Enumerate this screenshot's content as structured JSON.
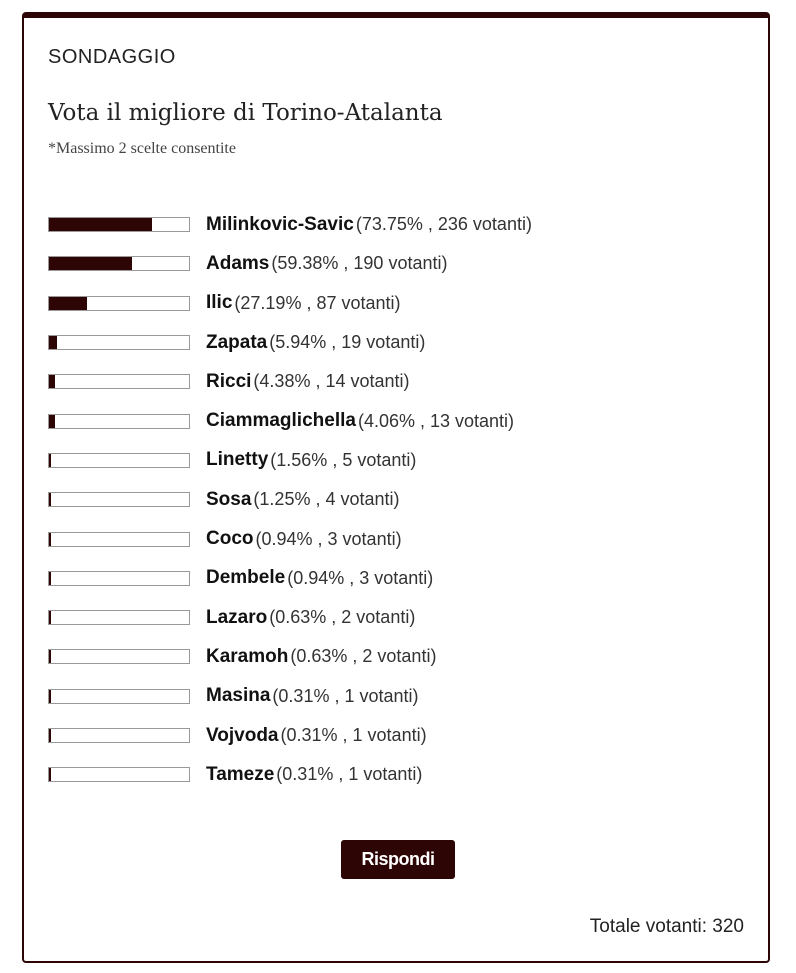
{
  "poll": {
    "label": "SONDAGGIO",
    "title": "Vota il migliore di Torino-Atalanta",
    "subtitle": "*Massimo 2 scelte consentite",
    "options": [
      {
        "name": "Milinkovic-Savic",
        "stat": "(73.75% , 236 votanti)",
        "percent": 73.75
      },
      {
        "name": "Adams",
        "stat": "(59.38% , 190 votanti)",
        "percent": 59.38
      },
      {
        "name": "Ilic",
        "stat": "(27.19% , 87 votanti)",
        "percent": 27.19
      },
      {
        "name": "Zapata",
        "stat": "(5.94% , 19 votanti)",
        "percent": 5.94
      },
      {
        "name": "Ricci",
        "stat": "(4.38% , 14 votanti)",
        "percent": 4.38
      },
      {
        "name": "Ciammaglichella",
        "stat": "(4.06% , 13 votanti)",
        "percent": 4.06
      },
      {
        "name": "Linetty",
        "stat": "(1.56% , 5 votanti)",
        "percent": 1.56
      },
      {
        "name": "Sosa",
        "stat": "(1.25% , 4 votanti)",
        "percent": 1.25
      },
      {
        "name": "Coco",
        "stat": "(0.94% , 3 votanti)",
        "percent": 0.94
      },
      {
        "name": "Dembele",
        "stat": "(0.94% , 3 votanti)",
        "percent": 0.94
      },
      {
        "name": "Lazaro",
        "stat": "(0.63% , 2 votanti)",
        "percent": 0.63
      },
      {
        "name": "Karamoh",
        "stat": "(0.63% , 2 votanti)",
        "percent": 0.63
      },
      {
        "name": "Masina",
        "stat": "(0.31% , 1 votanti)",
        "percent": 0.31
      },
      {
        "name": "Vojvoda",
        "stat": "(0.31% , 1 votanti)",
        "percent": 0.31
      },
      {
        "name": "Tameze",
        "stat": "(0.31% , 1 votanti)",
        "percent": 0.31
      }
    ],
    "submit_label": "Rispondi",
    "total": "Totale votanti: 320",
    "accent_color": "#2e0505"
  }
}
